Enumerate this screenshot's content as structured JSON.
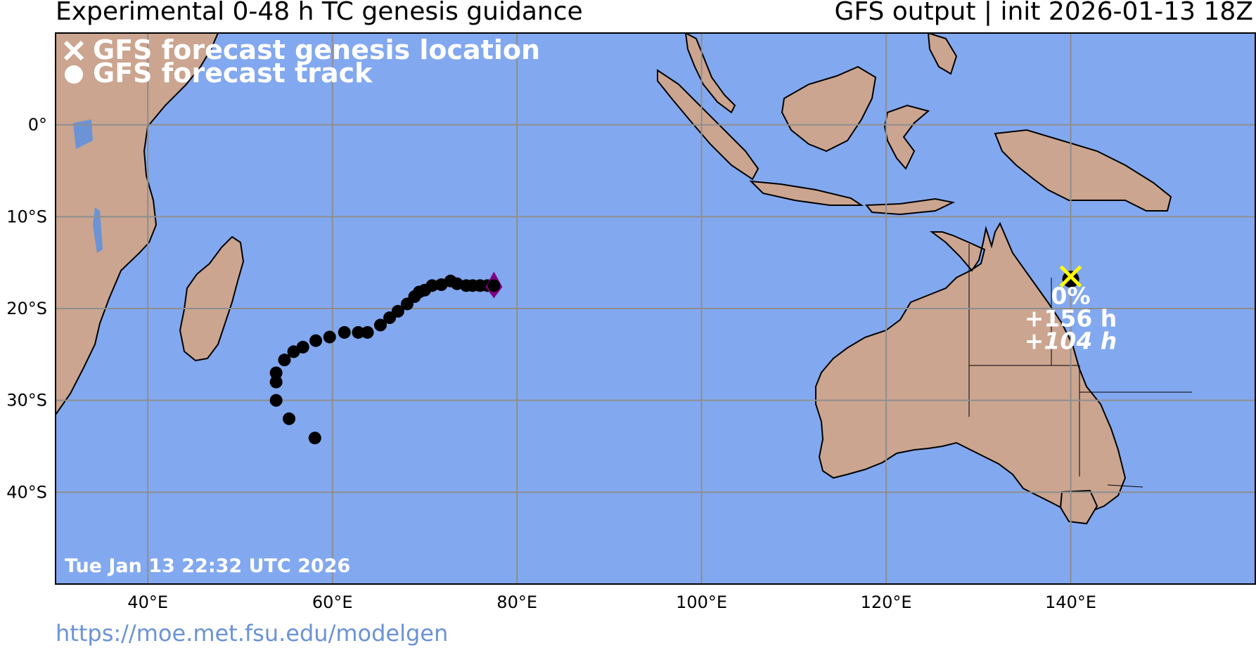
{
  "header": {
    "title_left": "Experimental 0-48 h TC genesis guidance",
    "title_right": "GFS output | init 2026-01-13 18Z"
  },
  "footer": {
    "url": "https://moe.met.fsu.edu/modelgen"
  },
  "map": {
    "timestamp": "Tue Jan 13 22:32 UTC 2026",
    "lon_range": [
      30,
      160
    ],
    "lat_range": [
      -50,
      10
    ],
    "colors": {
      "ocean": "#82a8ef",
      "land": "#cba590",
      "grid": "#8e8e8e",
      "track": "#000000",
      "genesis_marker": "#ffff00",
      "start_marker": "#800080",
      "lakes": "#6b93d6"
    },
    "lon_ticks": [
      "40°E",
      "60°E",
      "80°E",
      "100°E",
      "120°E",
      "140°E"
    ],
    "lat_ticks": [
      "0°",
      "10°S",
      "20°S",
      "30°S",
      "40°S"
    ]
  },
  "legend": {
    "genesis_label": "GFS forecast genesis location",
    "track_label": "GFS forecast track"
  },
  "storm": {
    "probability": "0%",
    "lead_time": "+156 h",
    "duration_prefix": "+",
    "duration_value": "104 h",
    "genesis_lon": 140.0,
    "genesis_lat": -16.5
  },
  "track": {
    "start": {
      "lon": 77.5,
      "lat": -17.5
    },
    "points": [
      [
        77.5,
        -17.5
      ],
      [
        76.8,
        -17.5
      ],
      [
        76.0,
        -17.5
      ],
      [
        75.2,
        -17.5
      ],
      [
        74.5,
        -17.5
      ],
      [
        73.5,
        -17.3
      ],
      [
        72.8,
        -17.0
      ],
      [
        71.8,
        -17.4
      ],
      [
        70.8,
        -17.5
      ],
      [
        70.0,
        -18.0
      ],
      [
        69.4,
        -18.2
      ],
      [
        68.9,
        -18.7
      ],
      [
        68.1,
        -19.5
      ],
      [
        67.1,
        -20.3
      ],
      [
        66.2,
        -21.0
      ],
      [
        65.2,
        -21.8
      ],
      [
        63.8,
        -22.6
      ],
      [
        62.8,
        -22.6
      ],
      [
        61.3,
        -22.6
      ],
      [
        59.7,
        -23.1
      ],
      [
        58.2,
        -23.5
      ],
      [
        56.8,
        -24.2
      ],
      [
        55.8,
        -24.7
      ],
      [
        54.8,
        -25.6
      ],
      [
        53.9,
        -27.0
      ],
      [
        53.9,
        -28.0
      ],
      [
        53.9,
        -30.0
      ],
      [
        55.3,
        -32.0
      ],
      [
        58.1,
        -34.1
      ]
    ]
  }
}
